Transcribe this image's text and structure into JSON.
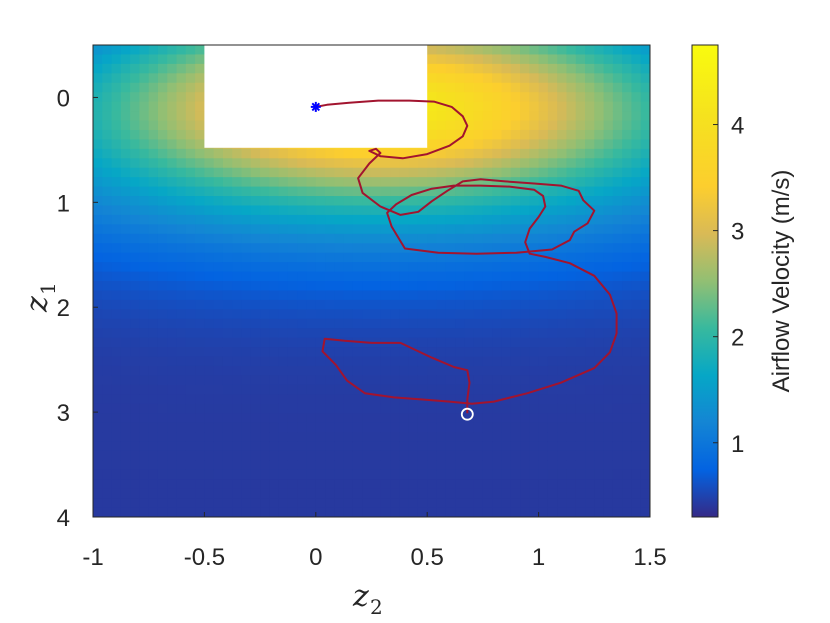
{
  "chart_data": {
    "type": "heatmap",
    "title": "",
    "xlabel": {
      "base": "z",
      "sub": "2"
    },
    "ylabel": {
      "base": "z",
      "sub": "1"
    },
    "xlim": [
      -1,
      1.5
    ],
    "ylim": [
      -0.5,
      4
    ],
    "y_reversed": true,
    "x_ticks": [
      -1,
      -0.5,
      0,
      0.5,
      1,
      1.5
    ],
    "x_tick_labels": [
      "-1",
      "-0.5",
      "0",
      "0.5",
      "1",
      "1.5"
    ],
    "y_ticks": [
      0,
      1,
      2,
      3,
      4
    ],
    "y_tick_labels": [
      "0",
      "1",
      "2",
      "3",
      "4"
    ],
    "colorbar": {
      "label": "Airflow Velocity (m/s)",
      "range": [
        0.3,
        4.75
      ],
      "ticks": [
        1,
        2,
        3,
        4
      ],
      "tick_labels": [
        "1",
        "2",
        "3",
        "4"
      ],
      "colormap": "parula"
    },
    "field": {
      "description_of_shape": "velocity peaks near top (z1≈0.3–0.7), decreasing with z1",
      "jet_center": [
        0.3,
        0.1
      ],
      "max_velocity": 4.6,
      "min_velocity": 0.4
    },
    "masked_region": {
      "x": [
        -0.5,
        0.5
      ],
      "y": [
        -0.5,
        0.48
      ],
      "color": "#ffffff"
    },
    "trajectory": {
      "color": "#a2142f",
      "points": [
        [
          0.0,
          0.09
        ],
        [
          0.05,
          0.07
        ],
        [
          0.15,
          0.05
        ],
        [
          0.28,
          0.03
        ],
        [
          0.42,
          0.03
        ],
        [
          0.53,
          0.04
        ],
        [
          0.61,
          0.09
        ],
        [
          0.66,
          0.18
        ],
        [
          0.68,
          0.27
        ],
        [
          0.66,
          0.37
        ],
        [
          0.6,
          0.46
        ],
        [
          0.5,
          0.54
        ],
        [
          0.39,
          0.58
        ],
        [
          0.29,
          0.56
        ],
        [
          0.24,
          0.51
        ],
        [
          0.27,
          0.49
        ],
        [
          0.29,
          0.53
        ],
        [
          0.24,
          0.63
        ],
        [
          0.19,
          0.77
        ],
        [
          0.21,
          0.91
        ],
        [
          0.29,
          1.04
        ],
        [
          0.38,
          1.12
        ],
        [
          0.46,
          1.09
        ],
        [
          0.52,
          0.99
        ],
        [
          0.59,
          0.89
        ],
        [
          0.66,
          0.8
        ],
        [
          0.74,
          0.78
        ],
        [
          0.85,
          0.8
        ],
        [
          0.98,
          0.82
        ],
        [
          1.1,
          0.84
        ],
        [
          1.18,
          0.89
        ],
        [
          1.2,
          0.98
        ],
        [
          1.25,
          1.08
        ],
        [
          1.22,
          1.2
        ],
        [
          1.16,
          1.28
        ],
        [
          1.14,
          1.36
        ],
        [
          1.06,
          1.45
        ],
        [
          0.9,
          1.48
        ],
        [
          0.72,
          1.49
        ],
        [
          0.55,
          1.48
        ],
        [
          0.4,
          1.44
        ],
        [
          0.34,
          1.23
        ],
        [
          0.32,
          1.1
        ],
        [
          0.36,
          1.02
        ],
        [
          0.43,
          0.93
        ],
        [
          0.52,
          0.87
        ],
        [
          0.62,
          0.84
        ],
        [
          0.74,
          0.84
        ],
        [
          0.87,
          0.85
        ],
        [
          0.98,
          0.88
        ],
        [
          1.02,
          0.94
        ],
        [
          1.03,
          1.04
        ],
        [
          1.0,
          1.14
        ],
        [
          0.96,
          1.25
        ],
        [
          0.94,
          1.38
        ],
        [
          0.96,
          1.49
        ],
        [
          1.03,
          1.52
        ],
        [
          1.14,
          1.58
        ],
        [
          1.25,
          1.7
        ],
        [
          1.32,
          1.88
        ],
        [
          1.35,
          2.06
        ],
        [
          1.35,
          2.25
        ],
        [
          1.32,
          2.43
        ],
        [
          1.25,
          2.58
        ],
        [
          1.1,
          2.72
        ],
        [
          0.95,
          2.82
        ],
        [
          0.8,
          2.9
        ],
        [
          0.7,
          2.92
        ],
        [
          0.6,
          2.9
        ],
        [
          0.48,
          2.88
        ],
        [
          0.35,
          2.86
        ],
        [
          0.22,
          2.82
        ],
        [
          0.14,
          2.7
        ],
        [
          0.09,
          2.55
        ],
        [
          0.03,
          2.42
        ],
        [
          0.04,
          2.3
        ],
        [
          0.13,
          2.32
        ],
        [
          0.25,
          2.34
        ],
        [
          0.38,
          2.34
        ],
        [
          0.52,
          2.48
        ],
        [
          0.62,
          2.57
        ],
        [
          0.68,
          2.6
        ],
        [
          0.69,
          2.72
        ],
        [
          0.68,
          2.88
        ],
        [
          0.68,
          3.01
        ]
      ]
    },
    "start_marker": {
      "x": 0.0,
      "y": 0.09,
      "symbol": "*",
      "color": "#0000ff"
    },
    "end_marker": {
      "x": 0.68,
      "y": 3.02,
      "symbol": "o",
      "color": "#ffffff"
    }
  }
}
